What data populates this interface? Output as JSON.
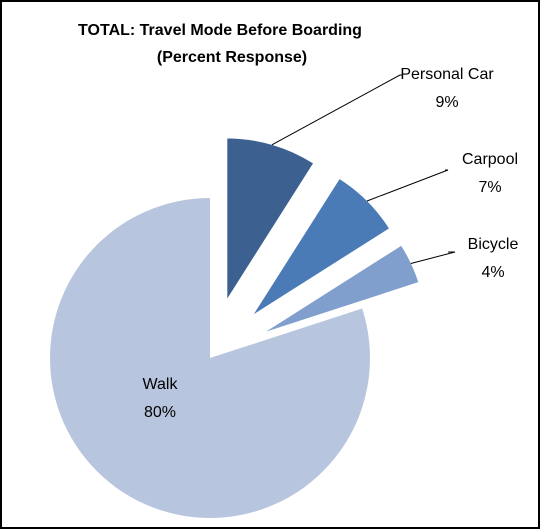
{
  "chart_data": {
    "type": "pie",
    "title": "TOTAL:  Travel Mode Before Boarding",
    "subtitle": "(Percent Response)",
    "categories": [
      "Personal Car",
      "Carpool",
      "Bicycle",
      "Walk"
    ],
    "values": [
      9,
      7,
      4,
      80
    ],
    "value_labels": [
      "9%",
      "7%",
      "4%",
      "80%"
    ],
    "colors": [
      "#3c6190",
      "#4a7bb6",
      "#809fcd",
      "#b7c5df"
    ],
    "exploded": [
      true,
      true,
      true,
      false
    ]
  }
}
